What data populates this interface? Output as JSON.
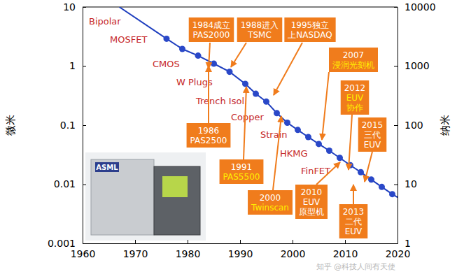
{
  "chart_data": {
    "type": "line",
    "log": "y",
    "xlim": [
      1960,
      2020
    ],
    "xticks": [
      1960,
      1970,
      1980,
      1990,
      2000,
      2010,
      2020
    ],
    "ylim": [
      0.001,
      10
    ],
    "yticks": [
      0.001,
      0.01,
      0.1,
      1,
      10
    ],
    "y2lim": [
      1,
      10000
    ],
    "y2ticks": [
      1,
      10,
      100,
      1000,
      10000
    ],
    "y_label": "微米",
    "y2_label": "纳米",
    "series": [
      {
        "type": "line",
        "color": "#1f3fbf",
        "line_style": "solid",
        "x": [
          1967,
          1976,
          1979,
          1982,
          1985,
          1988,
          1991,
          1993,
          1995,
          1997,
          1999,
          2001,
          2003,
          2005,
          2007,
          2009,
          2011,
          2013,
          2015,
          2017,
          2019,
          2020
        ],
        "values": [
          10,
          2.9,
          1.95,
          1.5,
          1.1,
          0.8,
          0.5,
          0.34,
          0.25,
          0.16,
          0.11,
          0.083,
          0.063,
          0.048,
          0.037,
          0.028,
          0.021,
          0.016,
          0.012,
          0.009,
          0.0068,
          0.006
        ]
      },
      {
        "type": "scatter",
        "color": "#2a48c8",
        "marker": "circle",
        "x": [
          1976,
          1979,
          1982,
          1985,
          1988,
          1991,
          1993,
          1995,
          1997,
          1999,
          2001,
          2003,
          2005,
          2007,
          2009,
          2011,
          2013,
          2015,
          2017,
          2019
        ],
        "values": [
          2.9,
          1.95,
          1.5,
          1.1,
          0.8,
          0.5,
          0.34,
          0.25,
          0.16,
          0.11,
          0.083,
          0.063,
          0.048,
          0.037,
          0.028,
          0.021,
          0.016,
          0.012,
          0.009,
          0.0068
        ]
      }
    ],
    "annotations": [
      "Bipolar",
      "MOSFET",
      "CMOS",
      "W Plugs",
      "Trench Isol.",
      "Copper",
      "Strain",
      "HKMG",
      "FinFET"
    ],
    "callouts": [
      {
        "lines": [
          "1984成立",
          "PAS2000"
        ]
      },
      {
        "lines": [
          "1988进入",
          "TSMC"
        ]
      },
      {
        "lines": [
          "1995独立",
          "上NASDAQ"
        ]
      },
      {
        "lines": [
          "2007",
          "浸润光刻机"
        ]
      },
      {
        "lines": [
          "2012",
          "EUV",
          "协作"
        ]
      },
      {
        "lines": [
          "2015",
          "三代",
          "EUV"
        ]
      },
      {
        "lines": [
          "1986",
          "PAS2500"
        ]
      },
      {
        "lines": [
          "1991",
          "PAS5500"
        ]
      },
      {
        "lines": [
          "2000",
          "Twinscan"
        ]
      },
      {
        "lines": [
          "2010",
          "EUV",
          "原型机"
        ]
      },
      {
        "lines": [
          "2013",
          "二代",
          "EUV"
        ]
      }
    ],
    "image_text": "ASML",
    "watermark": "知乎 @科技人间有天使"
  }
}
